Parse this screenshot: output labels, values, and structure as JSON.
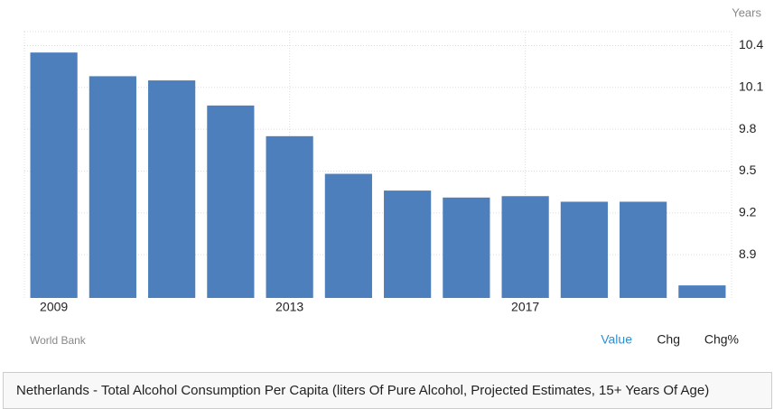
{
  "chart_data": {
    "type": "bar",
    "title": "Netherlands - Total Alcohol Consumption Per Capita (liters Of Pure Alcohol, Projected Estimates, 15+ Years Of Age)",
    "range_label": "Years",
    "source": "World Bank",
    "tabs": [
      "Value",
      "Chg",
      "Chg%"
    ],
    "categories": [
      "2009",
      null,
      null,
      null,
      "2013",
      null,
      null,
      null,
      "2017",
      null,
      null,
      null
    ],
    "values": [
      10.35,
      10.18,
      10.15,
      9.97,
      9.75,
      9.48,
      9.36,
      9.31,
      9.32,
      9.28,
      9.28,
      8.68
    ],
    "color": "#4d7fbc",
    "ylim": [
      8.59,
      10.5
    ],
    "yticks": [
      8.9,
      9.2,
      9.5,
      9.8,
      10.1,
      10.4
    ],
    "grid": true
  }
}
